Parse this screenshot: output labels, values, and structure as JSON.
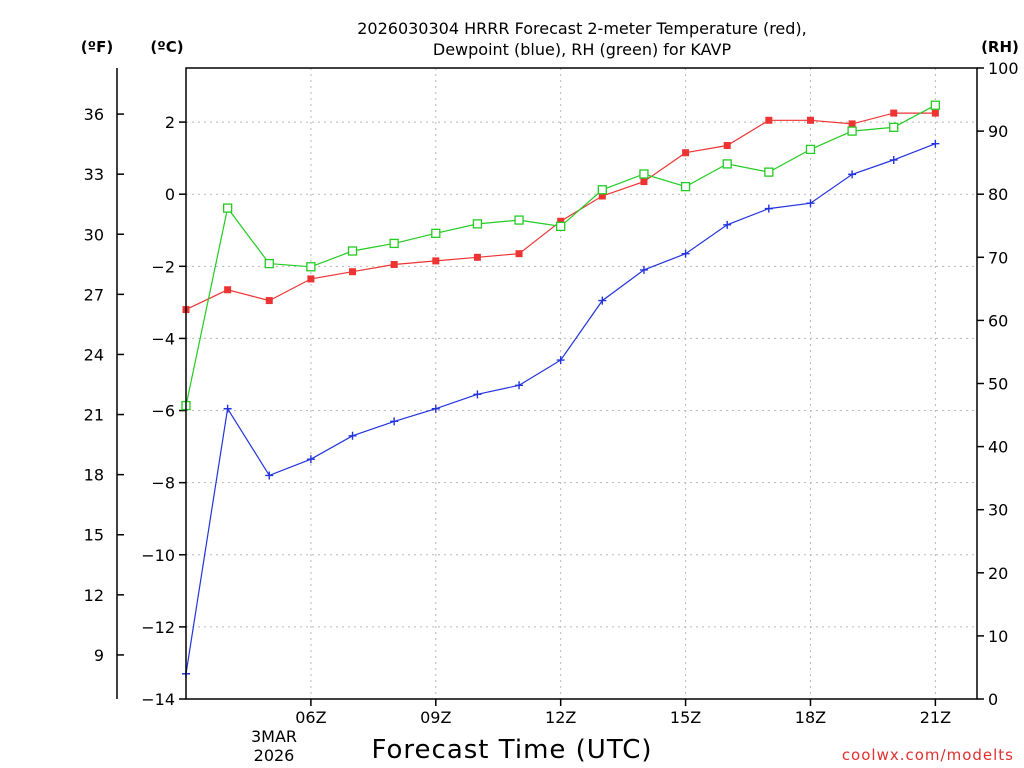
{
  "chart_data": {
    "type": "line",
    "title_lines": [
      "2026030304 HRRR Forecast 2-meter Temperature (red),",
      "Dewpoint (blue), RH (green) for KAVP"
    ],
    "xlabel": "Forecast Time (UTC)",
    "credit": "coolwx.com/modelts",
    "x_range": [
      3,
      22
    ],
    "x_ticks": [
      {
        "x": 6,
        "label": "06Z"
      },
      {
        "x": 9,
        "label": "09Z"
      },
      {
        "x": 12,
        "label": "12Z"
      },
      {
        "x": 15,
        "label": "15Z"
      },
      {
        "x": 18,
        "label": "18Z"
      },
      {
        "x": 21,
        "label": "21Z"
      }
    ],
    "date_label": [
      "3MAR",
      "2026"
    ],
    "y_left_c": {
      "unit": "(ºC)",
      "range": [
        -14,
        3.5
      ],
      "ticks": [
        2,
        0,
        -2,
        -4,
        -6,
        -8,
        -10,
        -12,
        -14
      ],
      "tick_labels": [
        "2",
        "0",
        "−2",
        "−4",
        "−6",
        "−8",
        "−10",
        "−12",
        "−14"
      ]
    },
    "y_left_f": {
      "unit": "(ºF)",
      "ticks": [
        36,
        33,
        30,
        27,
        24,
        21,
        18,
        15,
        12,
        9
      ],
      "tick_labels": [
        "36",
        "33",
        "30",
        "27",
        "24",
        "21",
        "18",
        "15",
        "12",
        "9"
      ]
    },
    "y_right_rh": {
      "unit": "(RH)",
      "range": [
        0,
        100
      ],
      "ticks": [
        100,
        90,
        80,
        70,
        60,
        50,
        40,
        30,
        20,
        10,
        0
      ],
      "tick_labels": [
        "100",
        "90",
        "80",
        "70",
        "60",
        "50",
        "40",
        "30",
        "20",
        "10",
        "0"
      ]
    },
    "x": [
      3,
      4,
      5,
      6,
      7,
      8,
      9,
      10,
      11,
      12,
      13,
      14,
      15,
      16,
      17,
      18,
      19,
      20,
      21,
      22
    ],
    "series": [
      {
        "name": "2-meter Temperature",
        "axis": "C",
        "color": "#ee3333",
        "marker": "filled-square",
        "values": [
          -3.2,
          -2.65,
          -2.95,
          -2.35,
          -2.15,
          -1.95,
          -1.85,
          -1.75,
          -1.65,
          -0.75,
          -0.05,
          0.35,
          1.15,
          1.35,
          2.05,
          2.05,
          1.95,
          2.25,
          2.25,
          null
        ]
      },
      {
        "name": "Dewpoint",
        "axis": "C",
        "color": "#2233dd",
        "marker": "plus",
        "values": [
          -13.3,
          -5.95,
          -7.8,
          -7.35,
          -6.7,
          -6.3,
          -5.95,
          -5.55,
          -5.3,
          -4.6,
          -2.95,
          -2.1,
          -1.65,
          -0.85,
          -0.4,
          -0.25,
          0.55,
          0.95,
          1.4,
          null
        ]
      },
      {
        "name": "RH",
        "axis": "RH",
        "color": "#22cc22",
        "marker": "open-square",
        "values": [
          46.5,
          77.8,
          69.0,
          68.5,
          71.0,
          72.2,
          73.8,
          75.3,
          75.9,
          74.9,
          80.7,
          83.2,
          81.2,
          84.8,
          83.5,
          87.1,
          90.0,
          90.6,
          94.1,
          null
        ]
      }
    ]
  }
}
